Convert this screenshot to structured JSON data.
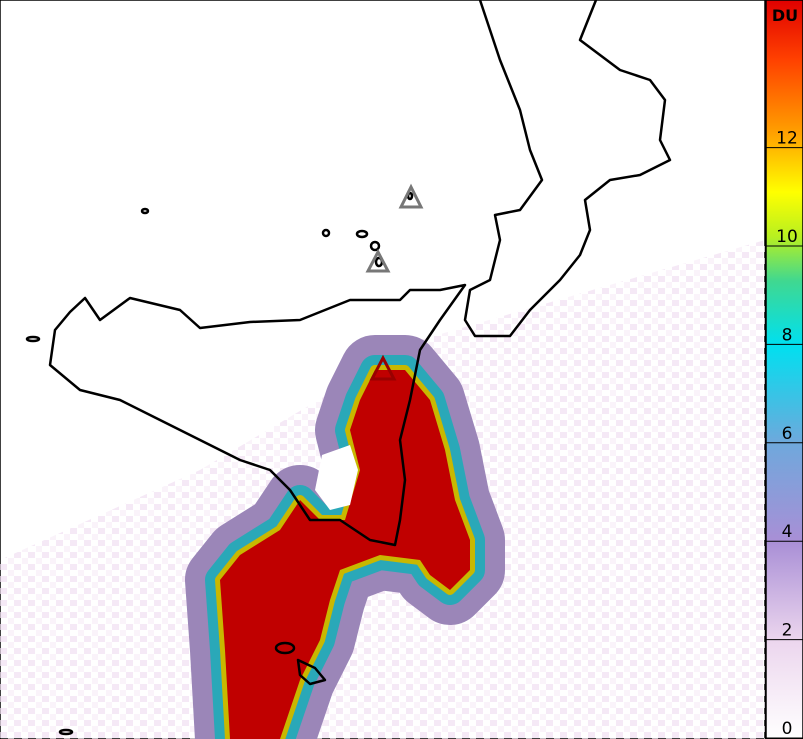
{
  "colorbar": {
    "label": "DU",
    "ticks": [
      0,
      2,
      4,
      6,
      8,
      10,
      12
    ],
    "range": [
      0,
      15
    ]
  }
}
